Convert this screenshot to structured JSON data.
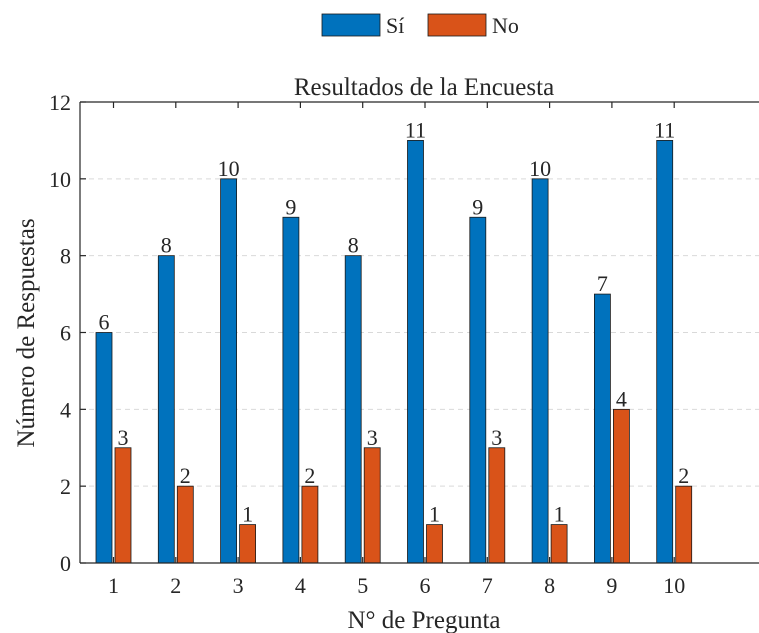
{
  "chart_data": {
    "type": "bar",
    "title": "Resultados de la Encuesta",
    "xlabel": "N° de Pregunta",
    "ylabel": "Número de Respuestas",
    "categories": [
      "1",
      "2",
      "3",
      "4",
      "5",
      "6",
      "7",
      "8",
      "9",
      "10"
    ],
    "series": [
      {
        "name": "Sí",
        "color": "#0072BD",
        "values": [
          6,
          8,
          10,
          9,
          8,
          11,
          9,
          10,
          7,
          11
        ]
      },
      {
        "name": "No",
        "color": "#D95319",
        "values": [
          3,
          2,
          1,
          2,
          3,
          1,
          3,
          1,
          4,
          2
        ]
      }
    ],
    "ylim": [
      0,
      12
    ],
    "yticks": [
      0,
      2,
      4,
      6,
      8,
      10,
      12
    ],
    "grid": "horizontal-dashed",
    "legend": "top-center-horizontal",
    "data_labels": true
  }
}
